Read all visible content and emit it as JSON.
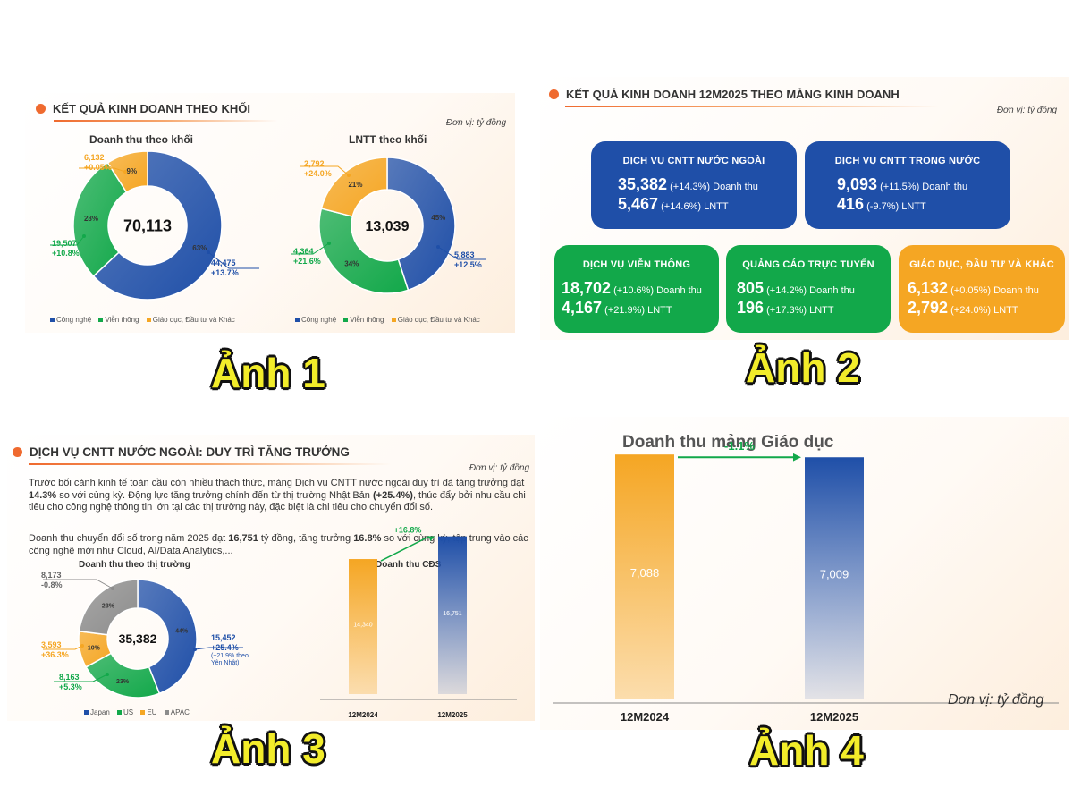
{
  "panel1": {
    "title": "KẾT QUẢ KINH DOANH THEO KHỐI",
    "unit": "Đơn vị: tỷ đồng",
    "caption": "Ảnh 1",
    "legend": [
      "Công nghệ",
      "Viễn thông",
      "Giáo dục, Đầu tư và Khác"
    ],
    "colors": {
      "tech": "#1f4fa8",
      "telecom": "#12a84a",
      "edu": "#f5a623"
    }
  },
  "panel2": {
    "title": "KẾT QUẢ KINH DOANH 12M2025 THEO MẢNG KINH DOANH",
    "unit": "Đơn vị: tỷ đồng",
    "caption": "Ảnh 2",
    "revenue_label": "Doanh thu",
    "profit_label": "LNTT",
    "cards": [
      {
        "title": "DỊCH VỤ CNTT NƯỚC NGOÀI",
        "revenue": "35,382",
        "revenue_growth": "(+14.3%)",
        "profit": "5,467",
        "profit_growth": "(+14.6%)",
        "color": "#1f4fa8"
      },
      {
        "title": "DỊCH VỤ CNTT TRONG NƯỚC",
        "revenue": "9,093",
        "revenue_growth": "(+11.5%)",
        "profit": "416",
        "profit_growth": "(-9.7%)",
        "color": "#1f4fa8"
      },
      {
        "title": "DỊCH VỤ VIỄN THÔNG",
        "revenue": "18,702",
        "revenue_growth": "(+10.6%)",
        "profit": "4,167",
        "profit_growth": "(+21.9%)",
        "color": "#12a84a"
      },
      {
        "title": "QUẢNG CÁO TRỰC TUYẾN",
        "revenue": "805",
        "revenue_growth": "(+14.2%)",
        "profit": "196",
        "profit_growth": "(+17.3%)",
        "color": "#12a84a"
      },
      {
        "title": "GIÁO DỤC, ĐẦU TƯ VÀ KHÁC",
        "revenue": "6,132",
        "revenue_growth": "(+0.05%)",
        "profit": "2,792",
        "profit_growth": "(+24.0%)",
        "color": "#f5a623"
      }
    ]
  },
  "panel3": {
    "title": "DỊCH VỤ CNTT NƯỚC NGOÀI: DUY TRÌ TĂNG TRƯỞNG",
    "unit": "Đơn vị: tỷ đồng",
    "caption": "Ảnh 3",
    "para1_a": "Trước bối cảnh kinh tế toàn cầu còn nhiều thách thức, mảng Dịch vụ CNTT nước ngoài duy trì đà tăng trưởng đạt ",
    "para1_b": "14.3%",
    "para1_c": " so với cùng kỳ. Động lực tăng trưởng chính đến từ thị trường Nhật Bản ",
    "para1_d": "(+25.4%)",
    "para1_e": ", thúc đẩy bởi nhu cầu chi tiêu cho công nghệ thông tin lớn tại các thị trường này, đặc biệt là chi tiêu cho chuyển đổi số.",
    "para2_a": "Doanh thu chuyển đổi số trong năm 2025 đạt ",
    "para2_b": "16,751",
    "para2_c": " tỷ đồng, tăng trưởng ",
    "para2_d": "16.8%",
    "para2_e": " so với cùng kỳ, tập trung vào các công nghệ mới như Cloud, AI/Data Analytics,...",
    "legend": [
      "Japan",
      "US",
      "EU",
      "APAC"
    ],
    "colors": {
      "japan": "#1f4fa8",
      "us": "#12a84a",
      "eu": "#f5a623",
      "apac": "#8c8c8c"
    }
  },
  "panel4": {
    "caption": "Ảnh 4",
    "unit": "Đơn vị: tỷ đồng"
  },
  "chart_data": [
    {
      "type": "pie",
      "title": "Doanh thu theo khối",
      "center_label": "70,113",
      "categories": [
        "Công nghệ",
        "Viễn thông",
        "Giáo dục, Đầu tư và Khác"
      ],
      "values": [
        63,
        28,
        9
      ],
      "value_labels": [
        "63%",
        "28%",
        "9%"
      ],
      "annotations": [
        {
          "value": "44,475",
          "growth": "+13.7%"
        },
        {
          "value": "19,507",
          "growth": "+10.8%"
        },
        {
          "value": "6,132",
          "growth": "+0.05%"
        }
      ]
    },
    {
      "type": "pie",
      "title": "LNTT theo khối",
      "center_label": "13,039",
      "categories": [
        "Công nghệ",
        "Viễn thông",
        "Giáo dục, Đầu tư và Khác"
      ],
      "values": [
        45,
        34,
        21
      ],
      "value_labels": [
        "45%",
        "34%",
        "21%"
      ],
      "annotations": [
        {
          "value": "5,883",
          "growth": "+12.5%"
        },
        {
          "value": "4,364",
          "growth": "+21.6%"
        },
        {
          "value": "2,792",
          "growth": "+24.0%"
        }
      ]
    },
    {
      "type": "pie",
      "title": "Doanh thu theo thị trường",
      "center_label": "35,382",
      "categories": [
        "Japan",
        "US",
        "EU",
        "APAC"
      ],
      "values": [
        44,
        23,
        10,
        23
      ],
      "value_labels": [
        "44%",
        "23%",
        "10%",
        "23%"
      ],
      "annotations": [
        {
          "value": "15,452",
          "growth": "+25.4%",
          "note": "(+21.9% theo Yên Nhật)"
        },
        {
          "value": "8,163",
          "growth": "+5.3%"
        },
        {
          "value": "3,593",
          "growth": "+36.3%"
        },
        {
          "value": "8,173",
          "growth": "-0.8%"
        }
      ]
    },
    {
      "type": "bar",
      "title": "Doanh thu CĐS",
      "categories": [
        "12M2024",
        "12M2025"
      ],
      "values": [
        14340,
        16751
      ],
      "value_labels": [
        "14,340",
        "16,751"
      ],
      "growth_label": "+16.8%",
      "ylim": [
        0,
        19000
      ]
    },
    {
      "type": "bar",
      "title": "Doanh thu mảng Giáo dục",
      "categories": [
        "12M2024",
        "12M2025"
      ],
      "values": [
        7088,
        7009
      ],
      "value_labels": [
        "7,088",
        "7,009"
      ],
      "growth_label": "-1.1%",
      "ylim": [
        0,
        7300
      ]
    }
  ]
}
